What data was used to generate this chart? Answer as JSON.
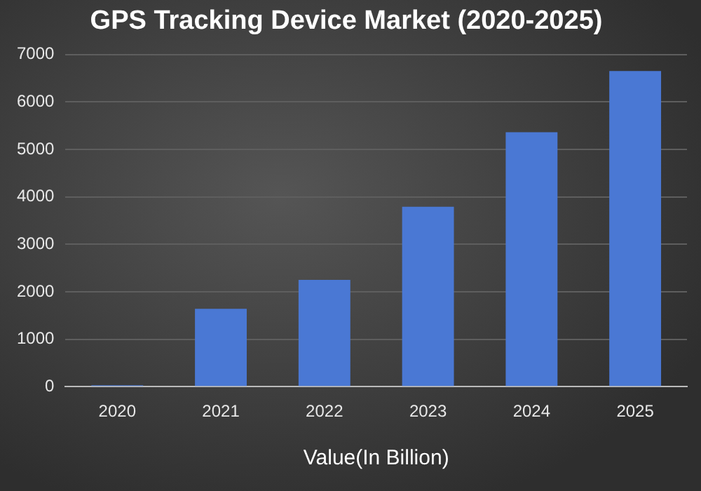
{
  "chart_data": {
    "type": "bar",
    "title": "GPS Tracking Device Market (2020-2025)",
    "xlabel": "Value(In Billion)",
    "categories": [
      "2020",
      "2021",
      "2022",
      "2023",
      "2024",
      "2025"
    ],
    "values": [
      30,
      1640,
      2250,
      3790,
      5360,
      6650
    ],
    "color": "#4a78d4",
    "ylim": [
      0,
      7000
    ],
    "yticks": [
      0,
      1000,
      2000,
      3000,
      4000,
      5000,
      6000,
      7000
    ],
    "grid": "y"
  }
}
